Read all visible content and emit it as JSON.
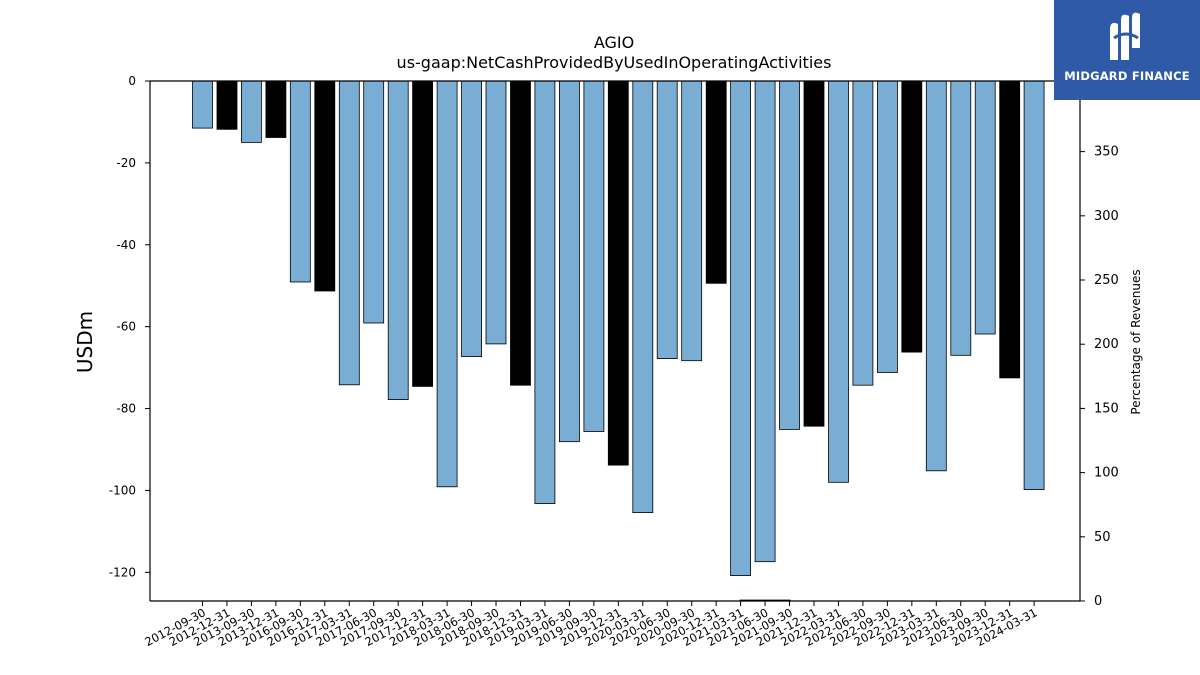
{
  "logo": {
    "text": "MIDGARD FINANCE",
    "icon": "midgard-logo-icon"
  },
  "chart_data": {
    "type": "bar",
    "title": "AGIO",
    "subtitle": "us-gaap:NetCashProvidedByUsedInOperatingActivities",
    "ylabel": "USDm",
    "ylabel_right": "Percentage of Revenues",
    "ylim": [
      -127,
      0
    ],
    "yticks": [
      0,
      -20,
      -40,
      -60,
      -80,
      -100,
      -120
    ],
    "ylim_right": [
      0,
      405
    ],
    "yticks_right": [
      0,
      50,
      100,
      150,
      200,
      250,
      300,
      350
    ],
    "grid": false,
    "colors": {
      "quarter": "#7aadd4",
      "year_end": "#000000",
      "edge": "#000000"
    },
    "categories": [
      "2012-09-30",
      "2012-12-31",
      "2013-09-30",
      "2013-12-31",
      "2016-09-30",
      "2016-12-31",
      "2017-03-31",
      "2017-06-30",
      "2017-09-30",
      "2017-12-31",
      "2018-03-31",
      "2018-06-30",
      "2018-09-30",
      "2018-12-31",
      "2019-03-31",
      "2019-06-30",
      "2019-09-30",
      "2019-12-31",
      "2020-03-31",
      "2020-06-30",
      "2020-09-30",
      "2020-12-31",
      "2021-03-31",
      "2021-06-30",
      "2021-09-30",
      "2021-12-31",
      "2022-03-31",
      "2022-06-30",
      "2022-09-30",
      "2022-12-31",
      "2023-03-31",
      "2023-06-30",
      "2023-09-30",
      "2023-12-31",
      "2024-03-31"
    ],
    "values": [
      -11.5,
      -11.8,
      -15,
      -13.8,
      -49.1,
      -51.3,
      -74.2,
      -59.1,
      -77.8,
      -74.6,
      -99.1,
      -67.3,
      -64.2,
      -74.3,
      -103.2,
      -88.1,
      -85.6,
      -93.8,
      -105.4,
      -67.8,
      -68.3,
      -49.4,
      -120.8,
      -117.4,
      -85.1,
      -84.3,
      -98,
      -74.3,
      -71.2,
      -66.2,
      -95.2,
      -67,
      -61.8,
      -72.5,
      -99.8
    ],
    "year_end": [
      false,
      true,
      false,
      true,
      false,
      true,
      false,
      false,
      false,
      true,
      false,
      false,
      false,
      true,
      false,
      false,
      false,
      true,
      false,
      false,
      false,
      true,
      false,
      false,
      false,
      true,
      false,
      false,
      false,
      true,
      false,
      false,
      false,
      true,
      false
    ],
    "secondary_line": {
      "x_range": [
        "2021-03-31",
        "2021-09-30"
      ],
      "value": 0.5
    }
  }
}
